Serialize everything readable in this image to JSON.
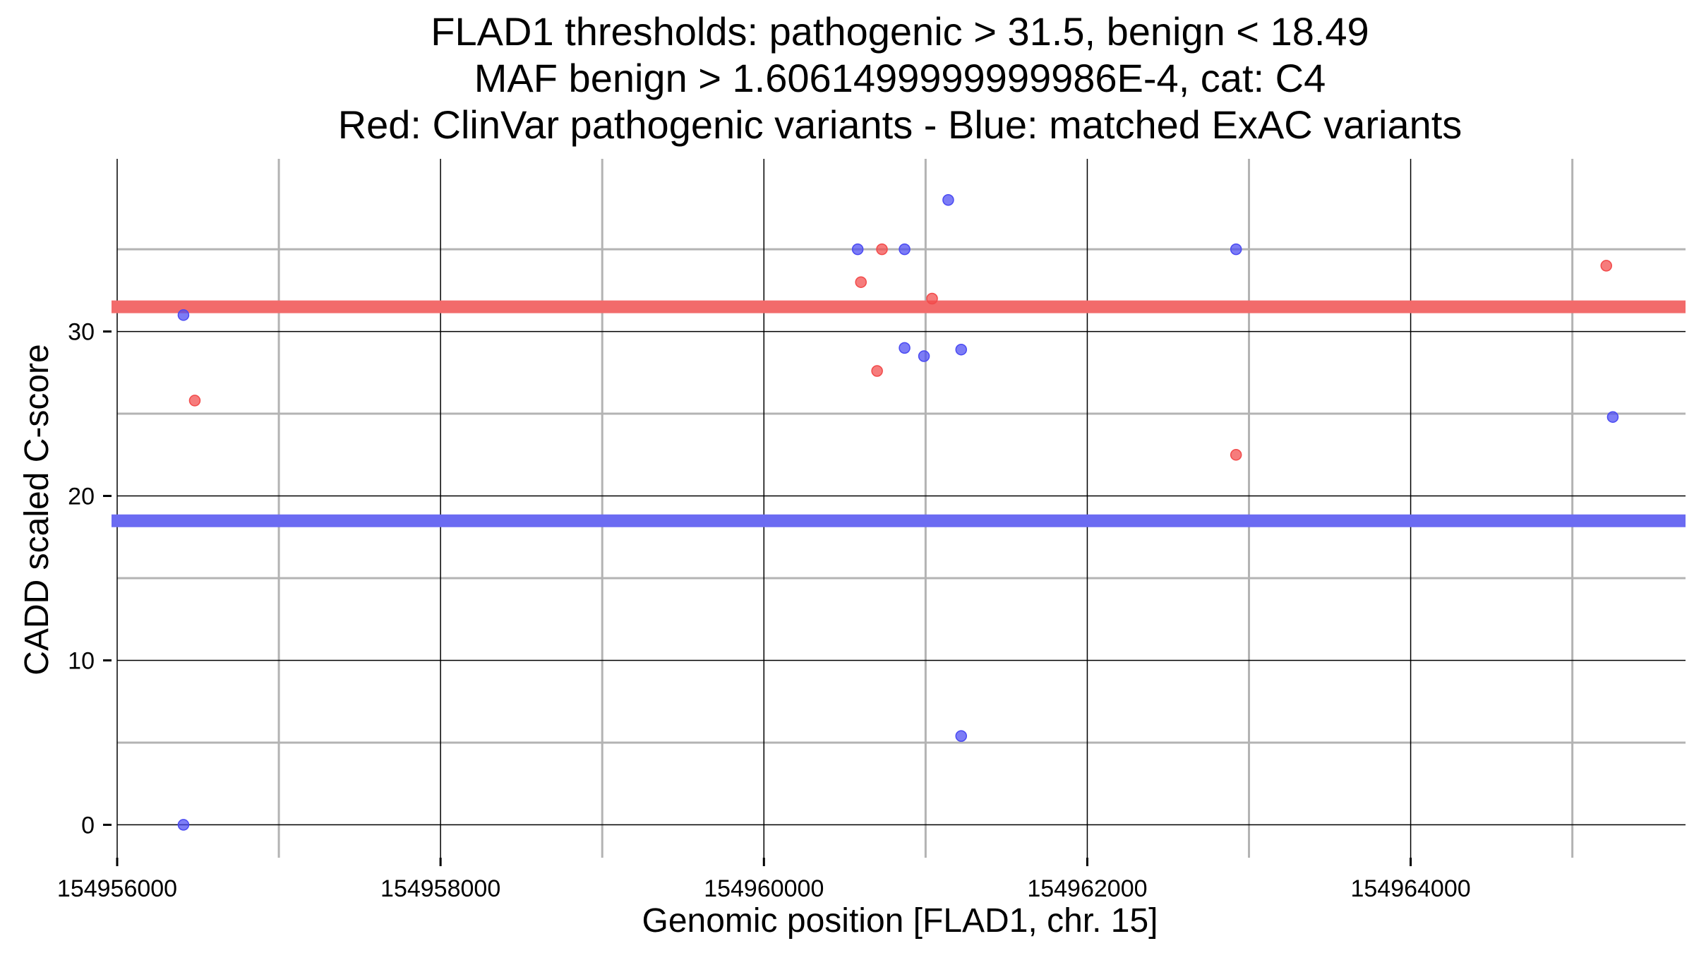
{
  "chart_data": {
    "type": "scatter",
    "title_lines": [
      "FLAD1 thresholds: pathogenic > 31.5, benign < 18.49",
      "MAF benign > 1.6061499999999986E-4, cat: C4",
      "Red: ClinVar pathogenic variants - Blue: matched ExAC variants"
    ],
    "xlabel": "Genomic position [FLAD1, chr. 15]",
    "ylabel": "CADD scaled C-score",
    "xlim": [
      154956000,
      154965700
    ],
    "ylim": [
      -2,
      40.5
    ],
    "x_major_ticks": [
      154956000,
      154958000,
      154960000,
      154962000,
      154964000
    ],
    "x_tick_labels": [
      "154956000",
      "154958000",
      "154960000",
      "154962000",
      "154964000"
    ],
    "x_minor_ticks": [
      154957000,
      154959000,
      154961000,
      154963000,
      154965000
    ],
    "y_major_ticks": [
      0,
      10,
      20,
      30
    ],
    "y_tick_labels": [
      "0",
      "10",
      "20",
      "30"
    ],
    "y_minor_ticks": [
      5,
      15,
      25,
      35
    ],
    "thresholds": [
      {
        "name": "pathogenic",
        "value": 31.5,
        "color": "#f26b6b"
      },
      {
        "name": "benign",
        "value": 18.49,
        "color": "#6b6bf2"
      }
    ],
    "series": [
      {
        "name": "ClinVar pathogenic variants",
        "color": "#f24a4a",
        "points": [
          {
            "x": 154956480,
            "y": 25.8
          },
          {
            "x": 154960600,
            "y": 33.0
          },
          {
            "x": 154960700,
            "y": 27.6
          },
          {
            "x": 154960730,
            "y": 35.0
          },
          {
            "x": 154961040,
            "y": 32.0
          },
          {
            "x": 154962920,
            "y": 22.5
          },
          {
            "x": 154965210,
            "y": 34.0
          }
        ]
      },
      {
        "name": "matched ExAC variants",
        "color": "#4a4af2",
        "points": [
          {
            "x": 154956410,
            "y": 31.0
          },
          {
            "x": 154956410,
            "y": 0.0
          },
          {
            "x": 154960580,
            "y": 35.0
          },
          {
            "x": 154960870,
            "y": 35.0
          },
          {
            "x": 154960870,
            "y": 29.0
          },
          {
            "x": 154960990,
            "y": 28.5
          },
          {
            "x": 154961140,
            "y": 38.0
          },
          {
            "x": 154961220,
            "y": 28.9
          },
          {
            "x": 154961220,
            "y": 5.4
          },
          {
            "x": 154962920,
            "y": 35.0
          },
          {
            "x": 154965250,
            "y": 24.8
          }
        ]
      }
    ]
  }
}
